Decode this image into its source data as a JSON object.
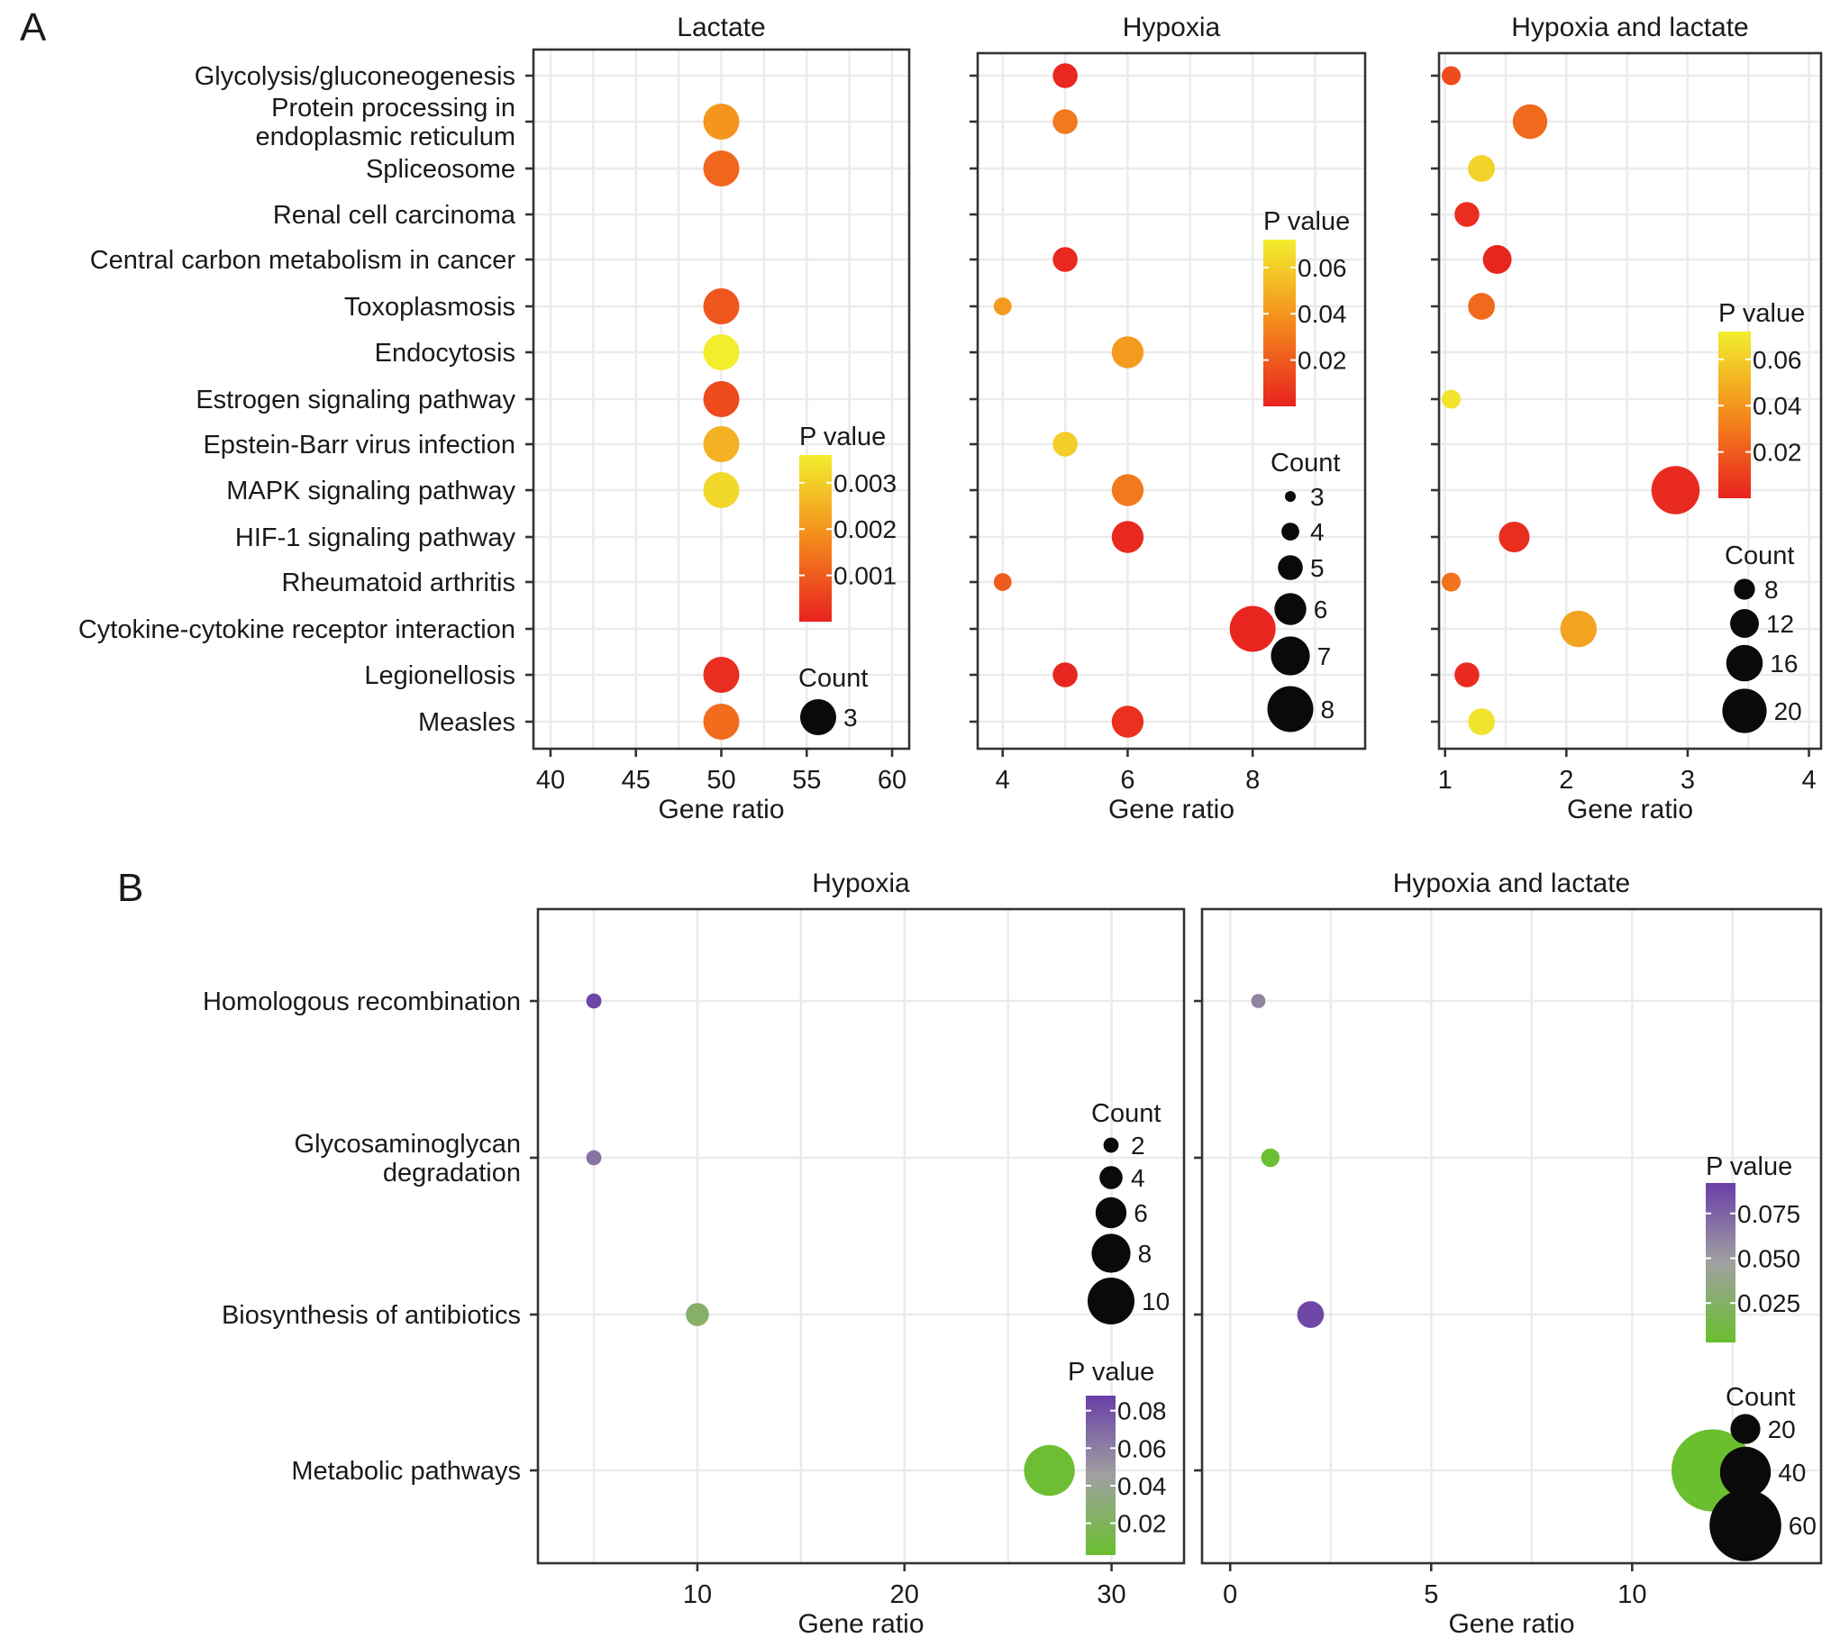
{
  "figure": {
    "panel_a_letter": "A",
    "panel_b_letter": "B"
  },
  "chart_data": [
    {
      "type": "scatter",
      "panel": "A",
      "title": "Lactate",
      "xlabel": "Gene ratio",
      "ylabel": "",
      "xlim": [
        39,
        61
      ],
      "xticks": [
        40,
        45,
        50,
        55,
        60
      ],
      "categories": [
        "Glycolysis/gluconeogenesis",
        "Protein processing in\nendoplasmic reticulum",
        "Spliceosome",
        "Renal cell carcinoma",
        "Central carbon metabolism in cancer",
        "Toxoplasmosis",
        "Endocytosis",
        "Estrogen signaling pathway",
        "Epstein-Barr virus infection",
        "MAPK signaling pathway",
        "HIF-1 signaling pathway",
        "Rheumatoid arthritis",
        "Cytokine-cytokine receptor interaction",
        "Legionellosis",
        "Measles"
      ],
      "points": [
        {
          "category": "Protein processing in\nendoplasmic reticulum",
          "x": 50,
          "count": 3,
          "p": 0.002
        },
        {
          "category": "Spliceosome",
          "x": 50,
          "count": 3,
          "p": 0.0012
        },
        {
          "category": "Toxoplasmosis",
          "x": 50,
          "count": 3,
          "p": 0.0009
        },
        {
          "category": "Endocytosis",
          "x": 50,
          "count": 3,
          "p": 0.0036
        },
        {
          "category": "Estrogen signaling pathway",
          "x": 50,
          "count": 3,
          "p": 0.0007
        },
        {
          "category": "Epstein-Barr virus infection",
          "x": 50,
          "count": 3,
          "p": 0.0025
        },
        {
          "category": "MAPK signaling pathway",
          "x": 50,
          "count": 3,
          "p": 0.0032
        },
        {
          "category": "Legionellosis",
          "x": 50,
          "count": 3,
          "p": 0.0002
        },
        {
          "category": "Measles",
          "x": 50,
          "count": 3,
          "p": 0.0013
        }
      ],
      "color_legend": {
        "title": "P value",
        "ticks": [
          "0.003",
          "0.002",
          "0.001"
        ],
        "tick_values": [
          0.003,
          0.002,
          0.001
        ],
        "range": [
          0.0,
          0.0036
        ],
        "low_color": "#e8221f",
        "mid_color": "#f48a1c",
        "high_color": "#f2ee2e"
      },
      "size_legend": {
        "title": "Count",
        "values": [
          3
        ],
        "labels": [
          "3"
        ]
      },
      "legend_position": "right-inside"
    },
    {
      "type": "scatter",
      "panel": "A",
      "title": "Hypoxia",
      "xlabel": "Gene ratio",
      "ylabel": "",
      "xlim": [
        3.6,
        9.8
      ],
      "xticks": [
        4,
        6,
        8
      ],
      "points": [
        {
          "category": "Glycolysis/gluconeogenesis",
          "x": 5,
          "count": 5,
          "p": 0.002
        },
        {
          "category": "Protein processing in\nendoplasmic reticulum",
          "x": 5,
          "count": 5,
          "p": 0.03
        },
        {
          "category": "Central carbon metabolism in cancer",
          "x": 5,
          "count": 5,
          "p": 0.002
        },
        {
          "category": "Toxoplasmosis",
          "x": 4,
          "count": 4,
          "p": 0.042
        },
        {
          "category": "Endocytosis",
          "x": 6,
          "count": 6,
          "p": 0.042
        },
        {
          "category": "Epstein-Barr virus infection",
          "x": 5,
          "count": 5,
          "p": 0.06
        },
        {
          "category": "MAPK signaling pathway",
          "x": 6,
          "count": 6,
          "p": 0.03
        },
        {
          "category": "HIF-1 signaling pathway",
          "x": 6,
          "count": 6,
          "p": 0.002
        },
        {
          "category": "Rheumatoid arthritis",
          "x": 4,
          "count": 4,
          "p": 0.02
        },
        {
          "category": "Cytokine-cytokine receptor interaction",
          "x": 8,
          "count": 8,
          "p": 0.001
        },
        {
          "category": "Legionellosis",
          "x": 5,
          "count": 5,
          "p": 0.001
        },
        {
          "category": "Measles",
          "x": 6,
          "count": 6,
          "p": 0.005
        }
      ],
      "color_legend": {
        "title": "P value",
        "ticks": [
          "0.06",
          "0.04",
          "0.02"
        ],
        "tick_values": [
          0.06,
          0.04,
          0.02
        ],
        "range": [
          0.0,
          0.072
        ],
        "low_color": "#e8221f",
        "mid_color": "#f48a1c",
        "high_color": "#f2ee2e"
      },
      "size_legend": {
        "title": "Count",
        "values": [
          3,
          4,
          5,
          6,
          7,
          8
        ],
        "labels": [
          "3",
          "4",
          "5",
          "6",
          "7",
          "8"
        ]
      },
      "legend_position": "right-inside"
    },
    {
      "type": "scatter",
      "panel": "A",
      "title": "Hypoxia and lactate",
      "xlabel": "Gene ratio",
      "ylabel": "",
      "xlim": [
        0.95,
        4.1
      ],
      "xticks": [
        1,
        2,
        3,
        4
      ],
      "points": [
        {
          "category": "Glycolysis/gluconeogenesis",
          "x": 1.05,
          "count": 7,
          "p": 0.015
        },
        {
          "category": "Protein processing in\nendoplasmic reticulum",
          "x": 1.7,
          "count": 15,
          "p": 0.025
        },
        {
          "category": "Spliceosome",
          "x": 1.3,
          "count": 11,
          "p": 0.062
        },
        {
          "category": "Renal cell carcinoma",
          "x": 1.18,
          "count": 10,
          "p": 0.004
        },
        {
          "category": "Central carbon metabolism in cancer",
          "x": 1.43,
          "count": 12,
          "p": 0.001
        },
        {
          "category": "Toxoplasmosis",
          "x": 1.3,
          "count": 11,
          "p": 0.025
        },
        {
          "category": "Estrogen signaling pathway",
          "x": 1.05,
          "count": 7,
          "p": 0.068
        },
        {
          "category": "MAPK signaling pathway",
          "x": 2.9,
          "count": 22,
          "p": 0.003
        },
        {
          "category": "HIF-1 signaling pathway",
          "x": 1.57,
          "count": 13,
          "p": 0.004
        },
        {
          "category": "Rheumatoid arthritis",
          "x": 1.05,
          "count": 7,
          "p": 0.028
        },
        {
          "category": "Cytokine-cytokine receptor interaction",
          "x": 2.1,
          "count": 16,
          "p": 0.045
        },
        {
          "category": "Legionellosis",
          "x": 1.18,
          "count": 10,
          "p": 0.003
        },
        {
          "category": "Measles",
          "x": 1.3,
          "count": 11,
          "p": 0.068
        }
      ],
      "color_legend": {
        "title": "P value",
        "ticks": [
          "0.06",
          "0.04",
          "0.02"
        ],
        "tick_values": [
          0.06,
          0.04,
          0.02
        ],
        "range": [
          0.0,
          0.072
        ],
        "low_color": "#e8221f",
        "mid_color": "#f48a1c",
        "high_color": "#f2ee2e"
      },
      "size_legend": {
        "title": "Count",
        "values": [
          8,
          12,
          16,
          20
        ],
        "labels": [
          "8",
          "12",
          "16",
          "20"
        ]
      },
      "legend_position": "right-inside"
    },
    {
      "type": "scatter",
      "panel": "B",
      "title": "Hypoxia",
      "xlabel": "Gene ratio",
      "ylabel": "",
      "xlim": [
        2.3,
        33.5
      ],
      "xticks": [
        10,
        20,
        30
      ],
      "categories": [
        "Homologous recombination",
        "Glycosaminoglycan\ndegradation",
        "Biosynthesis of antibiotics",
        "Metabolic pathways"
      ],
      "points": [
        {
          "category": "Homologous recombination",
          "x": 5,
          "count": 2,
          "p": 0.085
        },
        {
          "category": "Glycosaminoglycan\ndegradation",
          "x": 5,
          "count": 2,
          "p": 0.065
        },
        {
          "category": "Biosynthesis of antibiotics",
          "x": 10,
          "count": 4,
          "p": 0.025
        },
        {
          "category": "Metabolic pathways",
          "x": 27,
          "count": 11,
          "p": 0.005
        }
      ],
      "color_legend": {
        "title": "P value",
        "ticks": [
          "0.08",
          "0.06",
          "0.04",
          "0.02"
        ],
        "tick_values": [
          0.08,
          0.06,
          0.04,
          0.02
        ],
        "range": [
          0.003,
          0.088
        ],
        "low_color": "#6abf2e",
        "mid_color": "#a0a0a0",
        "high_color": "#6a3fa8"
      },
      "size_legend": {
        "title": "Count",
        "values": [
          2,
          4,
          6,
          8,
          10
        ],
        "labels": [
          "2",
          "4",
          "6",
          "8",
          "10"
        ]
      },
      "legend_position": "right-inside"
    },
    {
      "type": "scatter",
      "panel": "B",
      "title": "Hypoxia and lactate",
      "xlabel": "Gene ratio",
      "ylabel": "",
      "xlim": [
        -0.7,
        14.7
      ],
      "xticks": [
        0,
        5,
        10
      ],
      "points": [
        {
          "category": "Homologous recombination",
          "x": 0.7,
          "count": 5,
          "p": 0.06
        },
        {
          "category": "Glycosaminoglycan\ndegradation",
          "x": 1.0,
          "count": 9,
          "p": 0.005
        },
        {
          "category": "Biosynthesis of antibiotics",
          "x": 2.0,
          "count": 17,
          "p": 0.088
        },
        {
          "category": "Metabolic pathways",
          "x": 12.0,
          "count": 70,
          "p": 0.003
        }
      ],
      "color_legend": {
        "title": "P value",
        "ticks": [
          "0.075",
          "0.050",
          "0.025"
        ],
        "tick_values": [
          0.075,
          0.05,
          0.025
        ],
        "range": [
          0.003,
          0.092
        ],
        "low_color": "#6abf2e",
        "mid_color": "#a0a0a0",
        "high_color": "#6a3fa8"
      },
      "size_legend": {
        "title": "Count",
        "values": [
          20,
          40,
          60
        ],
        "labels": [
          "20",
          "40",
          "60"
        ]
      },
      "legend_position": "right-inside"
    }
  ]
}
